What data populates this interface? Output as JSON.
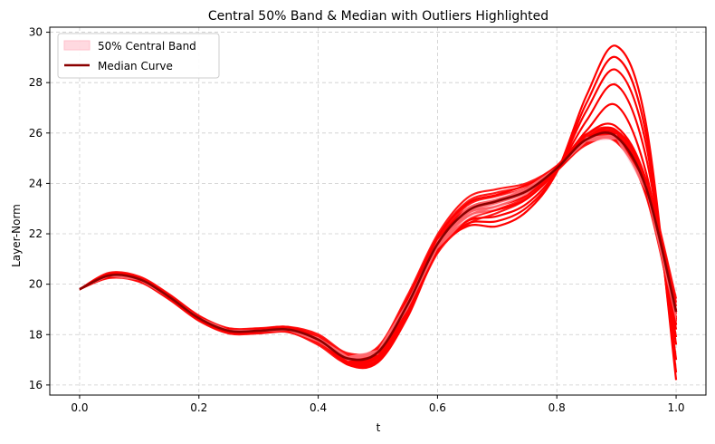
{
  "chart_data": {
    "type": "line",
    "title": "Central 50% Band & Median with Outliers Highlighted",
    "xlabel": "t",
    "ylabel": "Layer-Norm",
    "xlim": [
      -0.05,
      1.05
    ],
    "ylim": [
      15.6,
      30.2
    ],
    "xticks": [
      0.0,
      0.2,
      0.4,
      0.6,
      0.8,
      1.0
    ],
    "xtick_labels": [
      "0.0",
      "0.2",
      "0.4",
      "0.6",
      "0.8",
      "1.0"
    ],
    "yticks": [
      16,
      18,
      20,
      22,
      24,
      26,
      28,
      30
    ],
    "ytick_labels": [
      "16",
      "18",
      "20",
      "22",
      "24",
      "26",
      "28",
      "30"
    ],
    "grid": true,
    "legend_position": "top-left",
    "legend": [
      {
        "label": "50% Central Band",
        "kind": "band",
        "color": "#ffc0cb"
      },
      {
        "label": "Median Curve",
        "kind": "line",
        "color": "#8b0000"
      }
    ],
    "colors": {
      "outlier": "#ff0000",
      "band": "#ffc0cb",
      "median": "#8b0000",
      "background_curves": "#ff0000"
    },
    "x": [
      0.0,
      0.05,
      0.1,
      0.15,
      0.2,
      0.25,
      0.3,
      0.35,
      0.4,
      0.45,
      0.5,
      0.55,
      0.6,
      0.65,
      0.7,
      0.75,
      0.8,
      0.85,
      0.9,
      0.95,
      1.0
    ],
    "median": [
      19.8,
      20.35,
      20.2,
      19.5,
      18.65,
      18.15,
      18.15,
      18.2,
      17.8,
      17.05,
      17.3,
      19.2,
      21.6,
      22.9,
      23.3,
      23.7,
      24.6,
      25.75,
      25.85,
      23.8,
      18.9
    ],
    "band_lower": [
      19.8,
      20.3,
      20.15,
      19.45,
      18.6,
      18.1,
      18.1,
      18.15,
      17.7,
      16.95,
      17.2,
      19.0,
      21.4,
      22.6,
      23.0,
      23.55,
      24.55,
      25.65,
      25.75,
      23.65,
      18.5
    ],
    "band_upper": [
      19.8,
      20.4,
      20.25,
      19.55,
      18.7,
      18.2,
      18.2,
      18.25,
      17.9,
      17.15,
      17.4,
      19.35,
      21.75,
      23.1,
      23.45,
      23.85,
      24.65,
      25.85,
      25.95,
      23.95,
      19.0
    ],
    "outliers": [
      {
        "values": [
          19.8,
          20.4,
          20.2,
          19.5,
          18.65,
          18.15,
          18.2,
          18.3,
          17.8,
          16.8,
          16.9,
          18.7,
          21.3,
          22.3,
          22.3,
          22.9,
          24.45,
          27.5,
          29.45,
          26.3,
          16.2
        ]
      },
      {
        "values": [
          19.8,
          20.4,
          20.2,
          19.5,
          18.65,
          18.15,
          18.2,
          18.3,
          17.8,
          16.85,
          16.95,
          18.75,
          21.35,
          22.4,
          22.5,
          23.05,
          24.45,
          27.2,
          29.0,
          25.9,
          16.5
        ]
      },
      {
        "values": [
          19.8,
          20.38,
          20.2,
          19.5,
          18.65,
          18.15,
          18.18,
          18.28,
          17.8,
          16.9,
          17.0,
          18.8,
          21.4,
          22.5,
          22.7,
          23.2,
          24.5,
          26.9,
          28.5,
          25.5,
          17.0
        ]
      },
      {
        "values": [
          19.8,
          20.37,
          20.2,
          19.5,
          18.65,
          18.15,
          18.17,
          18.25,
          17.8,
          16.95,
          17.1,
          18.9,
          21.5,
          22.7,
          22.95,
          23.4,
          24.55,
          26.5,
          27.9,
          25.0,
          17.6
        ]
      },
      {
        "values": [
          19.8,
          20.36,
          20.2,
          19.5,
          18.65,
          18.15,
          18.16,
          18.22,
          17.8,
          17.0,
          17.2,
          19.05,
          21.55,
          22.8,
          23.1,
          23.55,
          24.6,
          26.1,
          27.1,
          24.4,
          18.2
        ]
      },
      {
        "values": [
          19.8,
          20.34,
          20.2,
          19.5,
          18.65,
          18.15,
          18.14,
          18.18,
          17.75,
          17.0,
          17.25,
          19.3,
          21.7,
          23.0,
          23.35,
          23.8,
          24.6,
          25.95,
          26.25,
          24.1,
          18.6
        ]
      },
      {
        "values": [
          19.8,
          20.33,
          20.2,
          19.5,
          18.65,
          18.15,
          18.13,
          18.15,
          17.75,
          17.05,
          17.35,
          19.45,
          21.85,
          23.2,
          23.55,
          23.95,
          24.6,
          25.75,
          25.95,
          23.7,
          18.4
        ]
      },
      {
        "values": [
          19.8,
          20.35,
          20.2,
          19.5,
          18.65,
          18.15,
          18.15,
          18.2,
          17.8,
          16.9,
          17.15,
          19.1,
          21.65,
          22.95,
          23.25,
          23.7,
          24.55,
          25.8,
          26.1,
          24.0,
          17.9
        ]
      }
    ],
    "background_curve_offsets": [
      -0.35,
      -0.25,
      -0.15,
      -0.05,
      0.05,
      0.15,
      0.25,
      0.35
    ]
  }
}
